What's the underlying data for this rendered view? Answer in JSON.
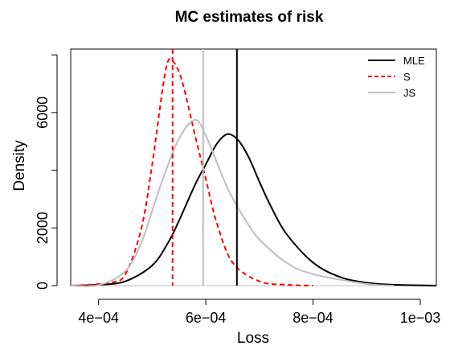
{
  "chart_data": {
    "type": "line",
    "title": "MC estimates of risk",
    "xlabel": "Loss",
    "ylabel": "Density",
    "xlim": [
      0.000348,
      0.00103
    ],
    "ylim": [
      0,
      8200
    ],
    "x_ticks": [
      {
        "value": 0.0004,
        "label": "4e−04"
      },
      {
        "value": 0.0006,
        "label": "6e−04"
      },
      {
        "value": 0.0008,
        "label": "8e−04"
      },
      {
        "value": 0.001,
        "label": "1e−03"
      }
    ],
    "y_ticks": [
      {
        "value": 0,
        "label": "0"
      },
      {
        "value": 2000,
        "label": "2000"
      },
      {
        "value": 6000,
        "label": "6000"
      }
    ],
    "y_minor_ticks": [
      4000,
      8000
    ],
    "grid": false,
    "legend_position": "top-right",
    "series": [
      {
        "name": "MLE",
        "color": "#000000",
        "dash": "solid",
        "x": [
          0.00035,
          0.0004,
          0.00045,
          0.0005,
          0.00053,
          0.00055,
          0.00058,
          0.0006,
          0.00062,
          0.00064,
          0.00066,
          0.00068,
          0.0007,
          0.00072,
          0.00075,
          0.0008,
          0.00085,
          0.0009,
          0.00095,
          0.001,
          0.00103
        ],
        "y": [
          0,
          30,
          150,
          700,
          1500,
          2250,
          3500,
          4200,
          4900,
          5250,
          5050,
          4450,
          3600,
          2800,
          1800,
          800,
          300,
          100,
          30,
          10,
          0
        ]
      },
      {
        "name": "S",
        "color": "#ff0000",
        "dash": "dashed",
        "x": [
          0.00035,
          0.00042,
          0.00045,
          0.00048,
          0.0005,
          0.00052,
          0.00053,
          0.00054,
          0.00055,
          0.00056,
          0.00058,
          0.0006,
          0.00062,
          0.00065,
          0.0007,
          0.00075,
          0.0008
        ],
        "y": [
          0,
          100,
          400,
          2000,
          4200,
          6900,
          7800,
          7750,
          7400,
          6800,
          5200,
          3700,
          2200,
          800,
          150,
          30,
          0
        ]
      },
      {
        "name": "JS",
        "color": "#bebebe",
        "dash": "solid",
        "x": [
          0.00035,
          0.0004,
          0.00045,
          0.00048,
          0.0005,
          0.00052,
          0.00055,
          0.00058,
          0.0006,
          0.00062,
          0.00064,
          0.00066,
          0.00068,
          0.0007,
          0.00075,
          0.0008,
          0.0009,
          0.00095
        ],
        "y": [
          0,
          20,
          500,
          1500,
          2600,
          3700,
          5100,
          5750,
          5200,
          4300,
          3400,
          2700,
          2100,
          1600,
          800,
          400,
          60,
          0
        ]
      }
    ],
    "vertical_lines": [
      {
        "series": "MLE",
        "x": 0.000658
      },
      {
        "series": "S",
        "x": 0.000538
      },
      {
        "series": "JS",
        "x": 0.000595
      }
    ]
  }
}
